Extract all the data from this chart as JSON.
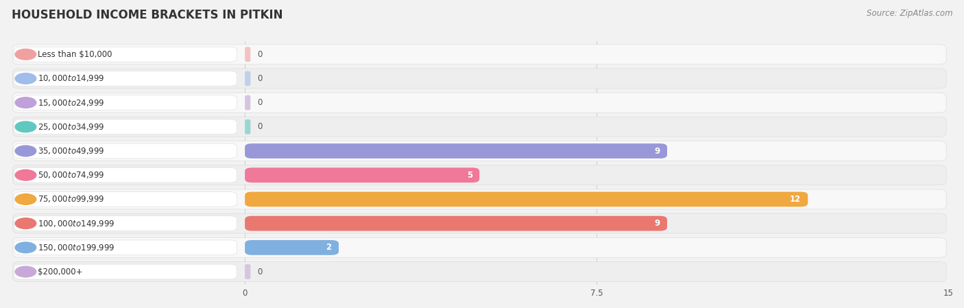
{
  "title": "HOUSEHOLD INCOME BRACKETS IN PITKIN",
  "source": "Source: ZipAtlas.com",
  "categories": [
    "Less than $10,000",
    "$10,000 to $14,999",
    "$15,000 to $24,999",
    "$25,000 to $34,999",
    "$35,000 to $49,999",
    "$50,000 to $74,999",
    "$75,000 to $99,999",
    "$100,000 to $149,999",
    "$150,000 to $199,999",
    "$200,000+"
  ],
  "values": [
    0,
    0,
    0,
    0,
    9,
    5,
    12,
    9,
    2,
    0
  ],
  "bar_colors": [
    "#f0a0a0",
    "#a0bce8",
    "#c0a0d8",
    "#60c8c0",
    "#9898d8",
    "#f07898",
    "#f0a840",
    "#e87870",
    "#80b0e0",
    "#c8a8d8"
  ],
  "xlim": [
    0,
    15
  ],
  "xticks": [
    0,
    7.5,
    15
  ],
  "background_color": "#f2f2f2",
  "row_bg_light": "#f8f8f8",
  "row_bg_dark": "#eeeeee",
  "title_fontsize": 12,
  "source_fontsize": 8.5,
  "label_fontsize": 8.5,
  "value_fontsize": 8.5
}
